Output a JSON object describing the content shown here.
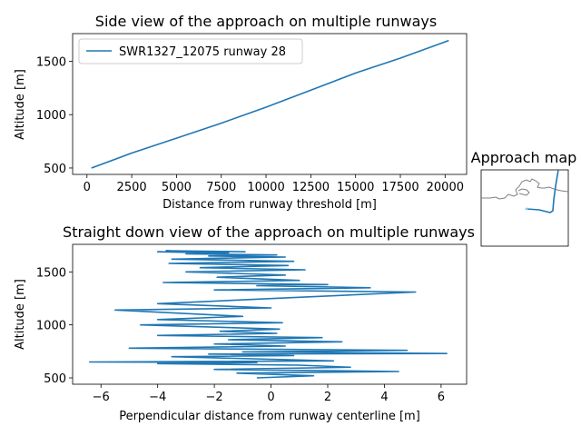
{
  "chart_data": [
    {
      "type": "line",
      "title": "Side view of the approach on multiple runways",
      "xlabel": "Distance from runway threshold [m]",
      "ylabel": "Altitude [m]",
      "xlim": [
        -800,
        21200
      ],
      "ylim": [
        440,
        1760
      ],
      "xticks": [
        0,
        2500,
        5000,
        7500,
        10000,
        12500,
        15000,
        17500,
        20000
      ],
      "yticks": [
        500,
        1000,
        1500
      ],
      "grid": false,
      "legend": "top-left",
      "series": [
        {
          "name": "SWR1327_12075 runway 28",
          "color": "#1f77b4",
          "x": [
            250,
            2500,
            5000,
            7500,
            10000,
            12500,
            15000,
            17500,
            20200
          ],
          "y": [
            500,
            640,
            780,
            920,
            1070,
            1230,
            1390,
            1530,
            1695
          ]
        }
      ]
    },
    {
      "type": "line",
      "title": "Straight down view of the approach on multiple runways",
      "xlabel": "Perpendicular distance from runway centerline [m]",
      "ylabel": "Altitude [m]",
      "xlim": [
        -7,
        6.9
      ],
      "ylim": [
        440,
        1760
      ],
      "xticks": [
        -6,
        -4,
        -2,
        0,
        2,
        4,
        6
      ],
      "yticks": [
        500,
        1000,
        1500
      ],
      "grid": false,
      "series": [
        {
          "name": "",
          "color": "#1f77b4",
          "x": [
            -0.5,
            1.5,
            -1.2,
            4.5,
            -2.0,
            2.8,
            1.0,
            -4.0,
            -0.5,
            -6.4,
            2.2,
            -3.5,
            0.8,
            -2.2,
            6.2,
            -1.0,
            4.8,
            -5.0,
            0.5,
            -2.0,
            2.5,
            -1.5,
            1.8,
            -4.0,
            0.2,
            -1.8,
            0.3,
            -4.6,
            0.4,
            -4.0,
            -1.0,
            -5.5,
            0.0,
            -4.0,
            5.1,
            -2.0,
            3.5,
            -0.5,
            2.0,
            -3.8,
            1.0,
            -1.9,
            0.5,
            -3.0,
            1.2,
            -2.5,
            0.6,
            -3.6,
            0.8,
            -3.5,
            0.5,
            -2.2,
            0.2,
            -3.0,
            -1.5,
            -4.0,
            -2.0,
            -3.7,
            -0.9
          ],
          "y": [
            500,
            520,
            545,
            560,
            580,
            600,
            620,
            635,
            645,
            650,
            660,
            700,
            710,
            725,
            730,
            745,
            760,
            780,
            800,
            820,
            840,
            860,
            880,
            900,
            920,
            940,
            960,
            1000,
            1020,
            1050,
            1080,
            1140,
            1160,
            1200,
            1310,
            1330,
            1350,
            1370,
            1380,
            1400,
            1420,
            1450,
            1470,
            1500,
            1520,
            1540,
            1560,
            1580,
            1600,
            1620,
            1640,
            1650,
            1660,
            1670,
            1680,
            1690,
            1680,
            1700,
            1690
          ]
        }
      ]
    },
    {
      "type": "line",
      "title": "Approach map",
      "series": []
    }
  ]
}
